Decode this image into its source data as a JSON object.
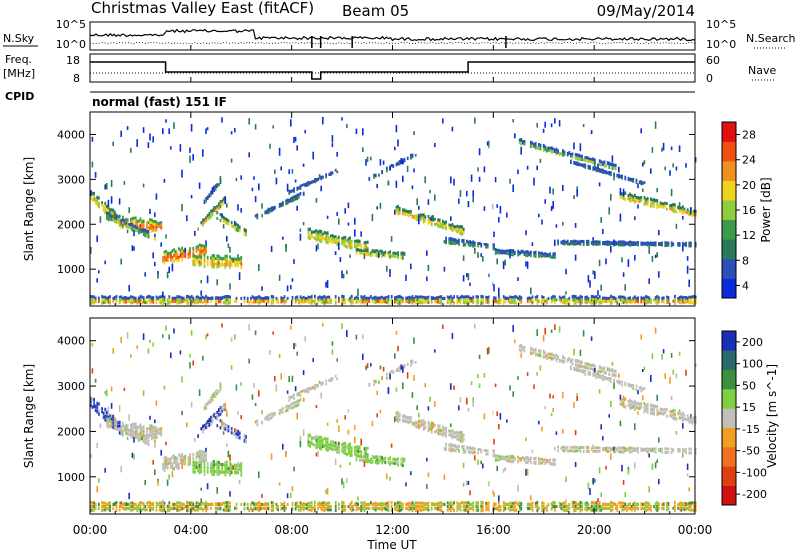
{
  "header": {
    "title": "Christmas Valley East (fitACF)",
    "beam": "Beam 05",
    "date": "09/May/2014"
  },
  "nsky_panel": {
    "left_label": "N.Sky",
    "right_label": "N.Search",
    "left_ticks": [
      "10^5",
      "10^0"
    ],
    "right_ticks": [
      "10^5",
      "10^0"
    ]
  },
  "freq_panel": {
    "left_label_line1": "Freq.",
    "left_label_line2": "[MHz]",
    "right_label": "Nave",
    "left_ticks": [
      "18",
      "8"
    ],
    "right_ticks": [
      "60",
      "0"
    ]
  },
  "cpid": {
    "label": "CPID",
    "value": "normal (fast) 151 IF"
  },
  "colors": {
    "power_scale": [
      "#0a2bd8",
      "#2a4fb8",
      "#2a7a5a",
      "#3c9a4a",
      "#8fcc40",
      "#f0d020",
      "#f09020",
      "#f05010",
      "#e01010"
    ],
    "velocity_scale": [
      "#1a2fb8",
      "#2a6a6a",
      "#3c8f3c",
      "#7ed040",
      "#c0c0b8",
      "#f0a020",
      "#f07020",
      "#e04010",
      "#d01010"
    ],
    "ground_scatter": "#bebeb6"
  },
  "chart_data": [
    {
      "type": "heatmap",
      "name": "power",
      "ylabel": "Slant Range [km]",
      "ylim": [
        180,
        4500
      ],
      "yticks": [
        "4000",
        "3000",
        "2000",
        "1000"
      ],
      "colorbar_label": "Power [dB]",
      "colorbar_ticks": [
        "28",
        "24",
        "20",
        "16",
        "12",
        "8",
        "4"
      ],
      "color_range": [
        0,
        32
      ]
    },
    {
      "type": "heatmap",
      "name": "velocity",
      "ylabel": "Slant Range [km]",
      "ylim": [
        180,
        4500
      ],
      "yticks": [
        "4000",
        "3000",
        "2000",
        "1000"
      ],
      "colorbar_label": "Velocity [m s^-1]",
      "colorbar_ticks": [
        "200",
        "100",
        "50",
        "15",
        "-15",
        "-50",
        "-100",
        "-200"
      ]
    }
  ],
  "x_axis": {
    "label": "Time UT",
    "ticks": [
      "00:00",
      "04:00",
      "08:00",
      "12:00",
      "16:00",
      "20:00",
      "00:00"
    ],
    "range_hours": [
      0,
      24
    ]
  }
}
